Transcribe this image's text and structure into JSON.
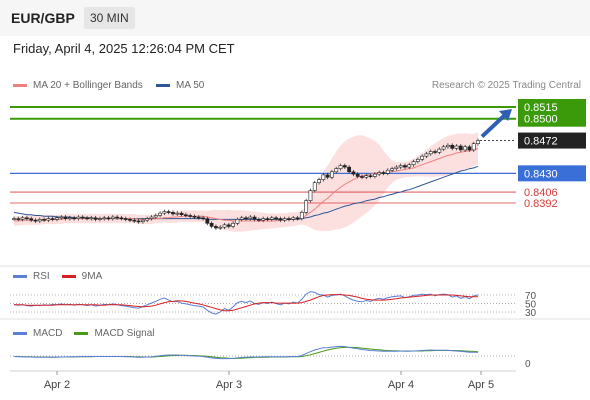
{
  "header": {
    "pair": "EUR/GBP",
    "timeframe": "30 MIN"
  },
  "datetime": "Friday, April 4, 2025 12:26:04 PM CET",
  "legend": {
    "ma20": {
      "label": "MA 20 + Bollinger Bands",
      "color": "#f08080"
    },
    "ma50": {
      "label": "MA 50",
      "color": "#2f5597"
    }
  },
  "copyright": "Research © 2025 Trading Central",
  "rsi_legend": {
    "rsi": "RSI",
    "ma": "9MA"
  },
  "macd_legend": {
    "macd": "MACD",
    "signal": "MACD Signal"
  },
  "chart_data": {
    "type": "line",
    "price_levels": [
      {
        "value": 0.8515,
        "label": "0.8515",
        "kind": "target",
        "color": "#3a9a0a"
      },
      {
        "value": 0.85,
        "label": "0.8500",
        "kind": "resistance",
        "color": "#3a9a0a"
      },
      {
        "value": 0.8472,
        "label": "0.8472",
        "kind": "last",
        "color": "#222222"
      },
      {
        "value": 0.843,
        "label": "0.8430",
        "kind": "pivot",
        "color": "#3a6fd8"
      },
      {
        "value": 0.8406,
        "label": "0.8406",
        "kind": "support",
        "color": "#d93a3a"
      },
      {
        "value": 0.8392,
        "label": "0.8392",
        "kind": "support",
        "color": "#d93a3a"
      }
    ],
    "x_ticks": [
      "Apr 2",
      "Apr 3",
      "Apr 4",
      "Apr 5"
    ],
    "rsi_ticks": [
      "70",
      "50",
      "30"
    ],
    "macd_ticks": [
      "0"
    ],
    "ylim": [
      0.8335,
      0.8535
    ],
    "close": [
      0.8372,
      0.8371,
      0.8373,
      0.8372,
      0.837,
      0.8369,
      0.8371,
      0.837,
      0.8372,
      0.8371,
      0.8373,
      0.8374,
      0.8372,
      0.8373,
      0.8372,
      0.8374,
      0.8373,
      0.8372,
      0.8373,
      0.8371,
      0.8372,
      0.8373,
      0.8372,
      0.8374,
      0.8373,
      0.8372,
      0.8371,
      0.837,
      0.8369,
      0.8368,
      0.837,
      0.8372,
      0.8374,
      0.8376,
      0.8379,
      0.8381,
      0.838,
      0.8378,
      0.8379,
      0.8377,
      0.8376,
      0.8375,
      0.8374,
      0.8373,
      0.8372,
      0.8366,
      0.8362,
      0.836,
      0.8361,
      0.8364,
      0.8362,
      0.8366,
      0.8371,
      0.8373,
      0.8372,
      0.8374,
      0.8371,
      0.837,
      0.8372,
      0.8371,
      0.8373,
      0.8372,
      0.837,
      0.8372,
      0.8371,
      0.8373,
      0.8372,
      0.838,
      0.8395,
      0.8408,
      0.8418,
      0.8422,
      0.8428,
      0.8425,
      0.8432,
      0.8436,
      0.844,
      0.8438,
      0.8432,
      0.8429,
      0.8426,
      0.8425,
      0.8427,
      0.8426,
      0.8429,
      0.8431,
      0.843,
      0.8434,
      0.8436,
      0.8438,
      0.844,
      0.8438,
      0.8441,
      0.8445,
      0.8448,
      0.8452,
      0.8455,
      0.8458,
      0.8457,
      0.8461,
      0.8464,
      0.8466,
      0.8462,
      0.8465,
      0.846,
      0.8464,
      0.846,
      0.8468,
      0.8472
    ],
    "ma20": [
      0.8369,
      0.8369,
      0.837,
      0.837,
      0.837,
      0.837,
      0.837,
      0.8371,
      0.8371,
      0.8371,
      0.8371,
      0.8371,
      0.8372,
      0.8372,
      0.8372,
      0.8372,
      0.8372,
      0.8372,
      0.8372,
      0.8372,
      0.8372,
      0.8372,
      0.8372,
      0.8372,
      0.8372,
      0.8372,
      0.8372,
      0.8372,
      0.8372,
      0.8371,
      0.8371,
      0.8371,
      0.8371,
      0.8372,
      0.8372,
      0.8373,
      0.8373,
      0.8374,
      0.8374,
      0.8375,
      0.8375,
      0.8375,
      0.8375,
      0.8375,
      0.8375,
      0.8374,
      0.8373,
      0.8372,
      0.8371,
      0.837,
      0.837,
      0.8369,
      0.8369,
      0.8369,
      0.8369,
      0.8369,
      0.8369,
      0.8369,
      0.8369,
      0.8369,
      0.8369,
      0.8369,
      0.837,
      0.837,
      0.8371,
      0.8371,
      0.8372,
      0.8373,
      0.8376,
      0.838,
      0.8384,
      0.8389,
      0.8394,
      0.8398,
      0.8403,
      0.8408,
      0.8412,
      0.8416,
      0.8419,
      0.8422,
      0.8425,
      0.8427,
      0.8428,
      0.8429,
      0.843,
      0.8431,
      0.8431,
      0.8432,
      0.8432,
      0.8433,
      0.8434,
      0.8435,
      0.8436,
      0.8437,
      0.8439,
      0.8441,
      0.8443,
      0.8445,
      0.8447,
      0.8449,
      0.8451,
      0.8453,
      0.8454,
      0.8456,
      0.8457,
      0.8458,
      0.8459,
      0.846,
      0.8462
    ],
    "ma50": [
      0.838,
      0.8379,
      0.8378,
      0.8377,
      0.8377,
      0.8376,
      0.8376,
      0.8375,
      0.8375,
      0.8375,
      0.8374,
      0.8374,
      0.8374,
      0.8374,
      0.8373,
      0.8373,
      0.8373,
      0.8373,
      0.8373,
      0.8372,
      0.8372,
      0.8372,
      0.8372,
      0.8372,
      0.8372,
      0.8372,
      0.8372,
      0.8372,
      0.8372,
      0.8372,
      0.8372,
      0.8372,
      0.8372,
      0.8372,
      0.8372,
      0.8372,
      0.8372,
      0.8372,
      0.8372,
      0.8372,
      0.8372,
      0.8372,
      0.8372,
      0.8372,
      0.8372,
      0.8371,
      0.8371,
      0.8371,
      0.8371,
      0.8371,
      0.8371,
      0.8371,
      0.8371,
      0.8371,
      0.8371,
      0.8371,
      0.8371,
      0.8371,
      0.8371,
      0.8371,
      0.8371,
      0.8371,
      0.8371,
      0.8371,
      0.8371,
      0.8371,
      0.8371,
      0.8372,
      0.8373,
      0.8374,
      0.8376,
      0.8377,
      0.8379,
      0.838,
      0.8382,
      0.8384,
      0.8386,
      0.8388,
      0.8389,
      0.8391,
      0.8392,
      0.8393,
      0.8395,
      0.8396,
      0.8397,
      0.8399,
      0.84,
      0.8402,
      0.8403,
      0.8405,
      0.8406,
      0.8408,
      0.8409,
      0.8411,
      0.8413,
      0.8415,
      0.8417,
      0.8419,
      0.8421,
      0.8423,
      0.8425,
      0.8427,
      0.8429,
      0.8431,
      0.8433,
      0.8434,
      0.8436,
      0.8437,
      0.8439
    ],
    "rsi": [
      48,
      46,
      47,
      45,
      44,
      46,
      45,
      47,
      46,
      48,
      47,
      49,
      47,
      48,
      46,
      48,
      47,
      45,
      47,
      44,
      46,
      48,
      47,
      49,
      47,
      45,
      44,
      42,
      40,
      39,
      43,
      47,
      51,
      55,
      60,
      63,
      58,
      54,
      55,
      51,
      49,
      47,
      45,
      44,
      42,
      34,
      28,
      25,
      30,
      38,
      34,
      42,
      52,
      55,
      52,
      56,
      50,
      48,
      52,
      50,
      53,
      50,
      47,
      51,
      49,
      53,
      51,
      60,
      72,
      78,
      76,
      71,
      70,
      65,
      69,
      70,
      72,
      68,
      62,
      58,
      55,
      54,
      57,
      55,
      60,
      62,
      60,
      64,
      66,
      67,
      68,
      64,
      66,
      69,
      70,
      72,
      71,
      72,
      68,
      71,
      72,
      71,
      65,
      68,
      62,
      66,
      61,
      68,
      70
    ],
    "rsi_ma": [
      47,
      47,
      47,
      46,
      46,
      46,
      46,
      46,
      46,
      46,
      47,
      47,
      47,
      47,
      47,
      47,
      47,
      47,
      47,
      47,
      46,
      46,
      47,
      47,
      47,
      47,
      46,
      45,
      44,
      43,
      42,
      43,
      44,
      46,
      49,
      52,
      54,
      55,
      56,
      56,
      55,
      53,
      51,
      49,
      47,
      44,
      41,
      38,
      35,
      33,
      33,
      34,
      37,
      40,
      43,
      46,
      49,
      51,
      52,
      52,
      52,
      51,
      51,
      51,
      51,
      51,
      51,
      52,
      55,
      58,
      62,
      66,
      69,
      70,
      71,
      71,
      71,
      70,
      69,
      67,
      65,
      62,
      60,
      59,
      58,
      58,
      58,
      59,
      60,
      61,
      63,
      64,
      65,
      66,
      67,
      68,
      69,
      70,
      70,
      70,
      70,
      70,
      70,
      69,
      68,
      67,
      66,
      66,
      66
    ],
    "macd": [
      -0.2,
      -0.3,
      -0.3,
      -0.4,
      -0.4,
      -0.5,
      -0.5,
      -0.5,
      -0.5,
      -0.5,
      -0.4,
      -0.4,
      -0.4,
      -0.3,
      -0.3,
      -0.3,
      -0.2,
      -0.2,
      -0.2,
      -0.2,
      -0.2,
      -0.2,
      -0.2,
      -0.2,
      -0.2,
      -0.2,
      -0.3,
      -0.3,
      -0.4,
      -0.5,
      -0.5,
      -0.4,
      -0.3,
      -0.1,
      0.1,
      0.3,
      0.4,
      0.4,
      0.4,
      0.3,
      0.2,
      0.1,
      0,
      -0.1,
      -0.2,
      -0.5,
      -0.8,
      -1,
      -1.1,
      -1.1,
      -1.1,
      -1,
      -0.8,
      -0.6,
      -0.5,
      -0.4,
      -0.4,
      -0.4,
      -0.3,
      -0.3,
      -0.3,
      -0.3,
      -0.3,
      -0.3,
      -0.3,
      -0.2,
      -0.2,
      0.2,
      1,
      1.8,
      2.5,
      3,
      3.4,
      3.5,
      3.7,
      3.9,
      4,
      3.9,
      3.6,
      3.3,
      3,
      2.7,
      2.5,
      2.3,
      2.2,
      2.1,
      2,
      2,
      2,
      2,
      2.1,
      2,
      2,
      2.1,
      2.2,
      2.3,
      2.4,
      2.5,
      2.4,
      2.4,
      2.4,
      2.4,
      2.2,
      2.1,
      1.9,
      1.8,
      1.6,
      1.6,
      1.5
    ],
    "macd_signal": [
      -0.2,
      -0.2,
      -0.3,
      -0.3,
      -0.3,
      -0.4,
      -0.4,
      -0.4,
      -0.4,
      -0.5,
      -0.5,
      -0.4,
      -0.4,
      -0.4,
      -0.4,
      -0.3,
      -0.3,
      -0.3,
      -0.3,
      -0.2,
      -0.2,
      -0.2,
      -0.2,
      -0.2,
      -0.2,
      -0.2,
      -0.2,
      -0.2,
      -0.3,
      -0.3,
      -0.4,
      -0.4,
      -0.4,
      -0.3,
      -0.2,
      -0.1,
      0.1,
      0.2,
      0.2,
      0.3,
      0.3,
      0.2,
      0.2,
      0.1,
      0,
      -0.1,
      -0.3,
      -0.5,
      -0.7,
      -0.8,
      -0.9,
      -1,
      -1,
      -0.9,
      -0.8,
      -0.7,
      -0.6,
      -0.6,
      -0.5,
      -0.5,
      -0.4,
      -0.4,
      -0.4,
      -0.4,
      -0.3,
      -0.3,
      -0.3,
      -0.2,
      0.1,
      0.5,
      1,
      1.5,
      2,
      2.5,
      2.9,
      3.2,
      3.4,
      3.6,
      3.6,
      3.6,
      3.5,
      3.3,
      3.1,
      2.9,
      2.7,
      2.6,
      2.4,
      2.3,
      2.2,
      2.2,
      2.1,
      2.1,
      2.1,
      2.1,
      2.1,
      2.1,
      2.2,
      2.2,
      2.3,
      2.3,
      2.3,
      2.3,
      2.3,
      2.3,
      2.2,
      2.1,
      2,
      1.9,
      1.8
    ]
  }
}
